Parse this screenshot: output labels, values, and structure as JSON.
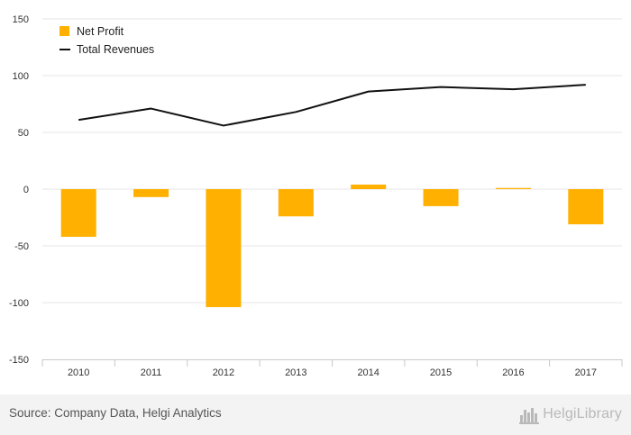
{
  "chart_data": {
    "type": "bar",
    "categories": [
      "2010",
      "2011",
      "2012",
      "2013",
      "2014",
      "2015",
      "2016",
      "2017"
    ],
    "series": [
      {
        "name": "Net Profit",
        "kind": "bar",
        "color": "#ffb000",
        "values": [
          -42,
          -7,
          -104,
          -24,
          4,
          -15,
          1,
          -31
        ]
      },
      {
        "name": "Total Revenues",
        "kind": "line",
        "color": "#111111",
        "values": [
          61,
          71,
          56,
          68,
          86,
          90,
          88,
          92
        ]
      }
    ],
    "title": "",
    "xlabel": "",
    "ylabel": "",
    "ylim": [
      -150,
      150
    ],
    "yticks": [
      "150",
      "100",
      "50",
      "0",
      "-50",
      "-100",
      "-150"
    ],
    "grid": true,
    "legend_position": "top-left"
  },
  "footer": {
    "source": "Source: Company Data, Helgi Analytics",
    "brand": "HelgiLibrary"
  }
}
